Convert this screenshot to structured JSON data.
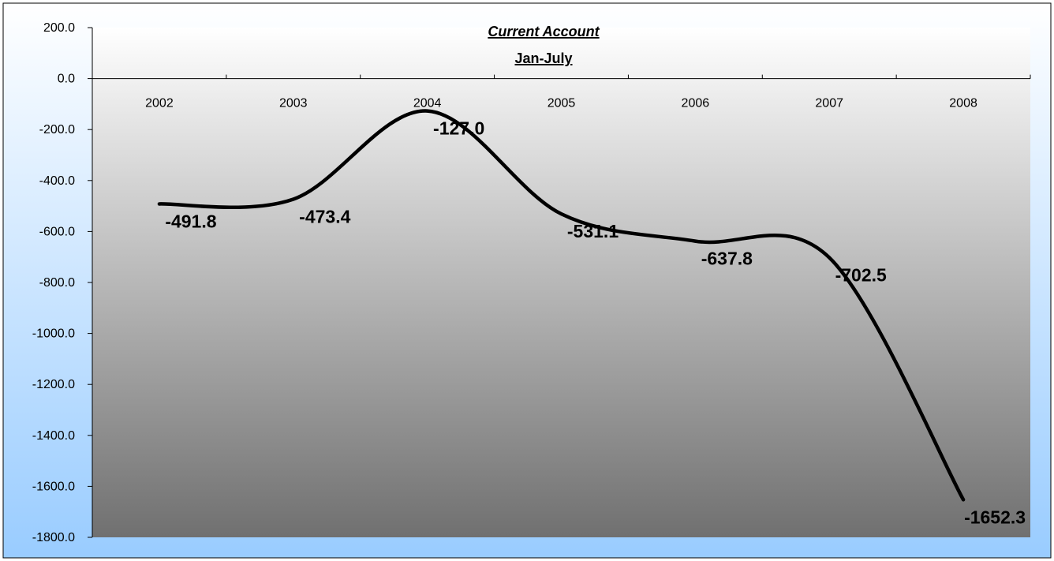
{
  "chart_data": {
    "type": "line",
    "title": "Current Account",
    "subtitle": "Jan-July",
    "xlabel": "",
    "ylabel": "",
    "categories": [
      "2002",
      "2003",
      "2004",
      "2005",
      "2006",
      "2007",
      "2008"
    ],
    "series": [
      {
        "values": [
          -491.8,
          -473.4,
          -127.0,
          -531.1,
          -637.8,
          -702.5,
          -1652.3
        ],
        "labels": [
          "-491.8",
          "-473.4",
          "-127.0",
          "-531.1",
          "-637.8",
          "-702.5",
          "-1652.3"
        ],
        "color": "#000000",
        "smooth": true
      }
    ],
    "ylim": [
      -1800,
      200
    ],
    "yticks": [
      200,
      0,
      -200,
      -400,
      -600,
      -800,
      -1000,
      -1200,
      -1400,
      -1600,
      -1800
    ],
    "ytick_labels": [
      "200.0",
      "0.0",
      "-200.0",
      "-400.0",
      "-600.0",
      "-800.0",
      "-1000.0",
      "-1200.0",
      "-1400.0",
      "-1600.0",
      "-1800.0"
    ],
    "grid": false,
    "legend": "none",
    "colors": {
      "outer_background_top": "#ffffff",
      "outer_background_bottom": "#99ccff",
      "plot_background_top": "#ffffff",
      "plot_background_bottom": "#707070",
      "line": "#000000"
    }
  }
}
